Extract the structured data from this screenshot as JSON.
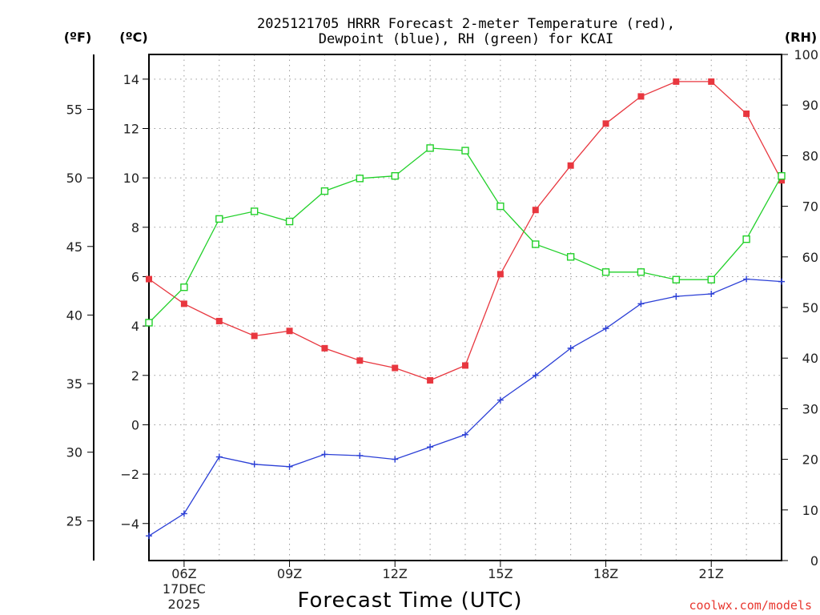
{
  "chart_data": {
    "type": "line",
    "title_lines": [
      "2025121705 HRRR Forecast 2-meter Temperature (red),",
      "Dewpoint (blue), RH (green) for KCAI"
    ],
    "xlabel": "Forecast Time (UTC)",
    "credit": "coolwx.com/models",
    "units": {
      "fahrenheit": "(ºF)",
      "celsius": "(ºC)",
      "rh": "(RH)"
    },
    "date_label": {
      "day": "17DEC",
      "year": "2025"
    },
    "x": [
      5,
      6,
      7,
      8,
      9,
      10,
      11,
      12,
      13,
      14,
      15,
      16,
      17,
      18,
      19,
      20,
      21,
      22,
      23
    ],
    "xlim": [
      5,
      23
    ],
    "x_ticks": [
      {
        "hour": 6,
        "label": "06Z"
      },
      {
        "hour": 9,
        "label": "09Z"
      },
      {
        "hour": 12,
        "label": "12Z"
      },
      {
        "hour": 15,
        "label": "15Z"
      },
      {
        "hour": 18,
        "label": "18Z"
      },
      {
        "hour": 21,
        "label": "21Z"
      }
    ],
    "ylim_c": [
      -5.5,
      15
    ],
    "y_ticks_c": [
      -4,
      -2,
      0,
      2,
      4,
      6,
      8,
      10,
      12,
      14
    ],
    "y_tick_labels_c": [
      "−4",
      "−2",
      "0",
      "2",
      "4",
      "6",
      "8",
      "10",
      "12",
      "14"
    ],
    "y_ticks_f": [
      25,
      30,
      35,
      40,
      45,
      50,
      55
    ],
    "ylim_rh": [
      0,
      100
    ],
    "y_ticks_rh": [
      0,
      10,
      20,
      30,
      40,
      50,
      60,
      70,
      80,
      90,
      100
    ],
    "series": [
      {
        "name": "Temperature",
        "axis": "celsius",
        "color": "#e8373f",
        "marker": "filled-square",
        "values": [
          5.9,
          4.9,
          4.2,
          3.6,
          3.8,
          3.1,
          2.6,
          2.3,
          1.8,
          2.4,
          6.1,
          8.7,
          10.5,
          12.2,
          13.3,
          13.9,
          13.9,
          12.6,
          9.9
        ]
      },
      {
        "name": "Dewpoint",
        "axis": "celsius",
        "color": "#2b3fd6",
        "marker": "plus",
        "values": [
          -4.5,
          -3.6,
          -1.3,
          -1.6,
          -1.7,
          -1.2,
          -1.25,
          -1.4,
          -0.9,
          -0.4,
          1.0,
          2.0,
          3.1,
          3.9,
          4.9,
          5.2,
          5.3,
          5.9,
          5.8
        ]
      },
      {
        "name": "RH",
        "axis": "rh",
        "color": "#22d02a",
        "marker": "open-square",
        "values": [
          47,
          54,
          67.5,
          69,
          67,
          73,
          75.5,
          76,
          81.5,
          81,
          70,
          62.5,
          60,
          57,
          57,
          55.5,
          55.5,
          63.5,
          76
        ]
      }
    ]
  }
}
